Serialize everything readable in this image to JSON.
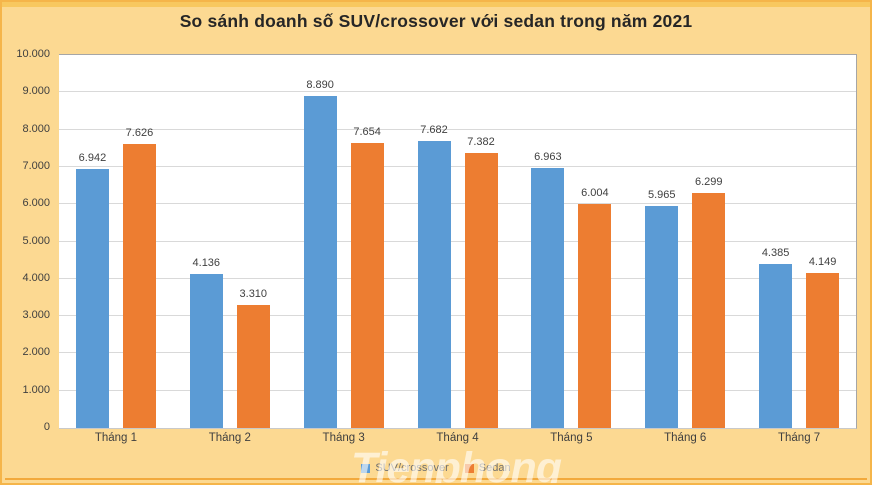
{
  "frame": {
    "background": "#FCD992",
    "border_color": "#F5B54A",
    "accent_color": "#F2A93C"
  },
  "watermark": {
    "text": "Tienphong"
  },
  "chart_data": {
    "type": "bar",
    "title": "So sánh doanh số SUV/crossover với sedan trong năm 2021",
    "categories": [
      "Tháng 1",
      "Tháng 2",
      "Tháng 3",
      "Tháng 4",
      "Tháng 5",
      "Tháng 6",
      "Tháng 7"
    ],
    "series": [
      {
        "name": "SUV/crossover",
        "color": "#5B9BD5",
        "values": [
          6942,
          4136,
          8890,
          7682,
          6963,
          5965,
          4385
        ],
        "labels": [
          "6.942",
          "4.136",
          "8.890",
          "7.682",
          "6.963",
          "5.965",
          "4.385"
        ]
      },
      {
        "name": "Sedan",
        "color": "#ED7D31",
        "values": [
          7626,
          3310,
          7654,
          7382,
          6004,
          6299,
          4149
        ],
        "labels": [
          "7.626",
          "3.310",
          "7.654",
          "7.382",
          "6.004",
          "6.299",
          "4.149"
        ]
      }
    ],
    "xlabel": "",
    "ylabel": "",
    "ylim": [
      0,
      10000
    ],
    "grid": true,
    "legend_position": "bottom",
    "y_ticks": [
      {
        "value": 0,
        "label": "0"
      },
      {
        "value": 1000,
        "label": "1.000"
      },
      {
        "value": 2000,
        "label": "2.000"
      },
      {
        "value": 3000,
        "label": "3.000"
      },
      {
        "value": 4000,
        "label": "4.000"
      },
      {
        "value": 5000,
        "label": "5.000"
      },
      {
        "value": 6000,
        "label": "6.000"
      },
      {
        "value": 7000,
        "label": "7.000"
      },
      {
        "value": 8000,
        "label": "8.000"
      },
      {
        "value": 9000,
        "label": "9.000"
      },
      {
        "value": 10000,
        "label": "10.000"
      }
    ]
  }
}
